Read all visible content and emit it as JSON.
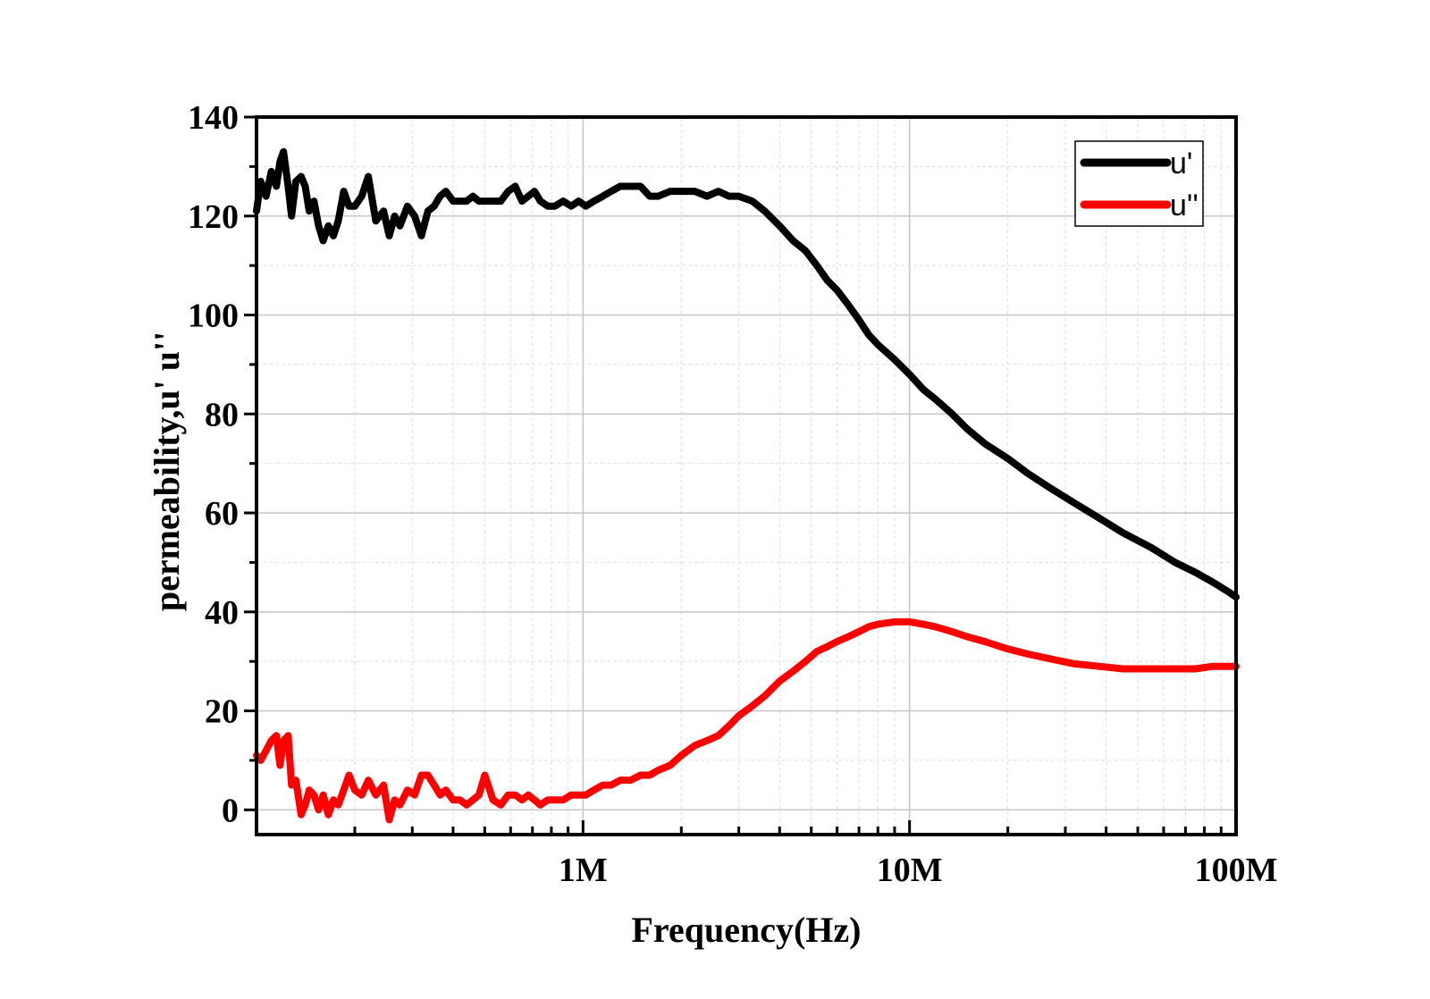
{
  "chart_data": {
    "type": "line",
    "title": "",
    "xlabel": "Frequency(Hz)",
    "ylabel": "permeability,u'  u''",
    "xscale": "log",
    "xlim": [
      100000,
      100000000
    ],
    "ylim": [
      -5,
      140
    ],
    "grid": true,
    "legend_position": "top-right",
    "x_tick_labels": [
      {
        "value": 1000000,
        "label": "1M"
      },
      {
        "value": 10000000,
        "label": "10M"
      },
      {
        "value": 100000000,
        "label": "100M"
      }
    ],
    "y_tick_labels": [
      {
        "value": 0,
        "label": "0"
      },
      {
        "value": 20,
        "label": "20"
      },
      {
        "value": 40,
        "label": "40"
      },
      {
        "value": 60,
        "label": "60"
      },
      {
        "value": 80,
        "label": "80"
      },
      {
        "value": 100,
        "label": "100"
      },
      {
        "value": 120,
        "label": "120"
      },
      {
        "value": 140,
        "label": "140"
      }
    ],
    "series": [
      {
        "name": "u'",
        "color": "#000000",
        "x": [
          100000,
          103000,
          107000,
          111000,
          115000,
          118000,
          121000,
          125000,
          128000,
          132000,
          137000,
          141000,
          145000,
          150000,
          155000,
          160000,
          166000,
          172000,
          178000,
          185000,
          192000,
          200000,
          210000,
          220000,
          232000,
          245000,
          255000,
          265000,
          275000,
          290000,
          305000,
          320000,
          335000,
          350000,
          365000,
          380000,
          400000,
          420000,
          440000,
          460000,
          480000,
          500000,
          530000,
          560000,
          590000,
          620000,
          650000,
          680000,
          710000,
          740000,
          780000,
          820000,
          870000,
          920000,
          970000,
          1020000,
          1080000,
          1150000,
          1220000,
          1300000,
          1400000,
          1500000,
          1600000,
          1700000,
          1850000,
          2000000,
          2200000,
          2400000,
          2600000,
          2800000,
          3000000,
          3300000,
          3600000,
          4000000,
          4400000,
          4800000,
          5200000,
          5600000,
          6000000,
          6500000,
          7000000,
          7500000,
          8000000,
          9000000,
          10000000,
          11000000,
          12000000,
          13500000,
          15000000,
          17000000,
          20000000,
          23000000,
          27000000,
          32000000,
          38000000,
          45000000,
          55000000,
          65000000,
          75000000,
          85000000,
          95000000,
          100000000
        ],
        "y": [
          121,
          127,
          124,
          129,
          126,
          131,
          133,
          126,
          120,
          127,
          128,
          126,
          121,
          123,
          118,
          115,
          118,
          116,
          119,
          125,
          122,
          122,
          124,
          128,
          119,
          121,
          116,
          120,
          118,
          122,
          120,
          116,
          121,
          122,
          124,
          125,
          123,
          123,
          123,
          124,
          123,
          123,
          123,
          123,
          125,
          126,
          123,
          124,
          125,
          123,
          122,
          122,
          123,
          122,
          123,
          122,
          123,
          124,
          125,
          126,
          126,
          126,
          124,
          124,
          125,
          125,
          125,
          124,
          125,
          124,
          124,
          123,
          121,
          118,
          115,
          113,
          110,
          107,
          105,
          102,
          99,
          96,
          94,
          91,
          88,
          85,
          83,
          80,
          77,
          74,
          71,
          68,
          65,
          62,
          59,
          56,
          53,
          50,
          48,
          46,
          44,
          43
        ]
      },
      {
        "name": "u''",
        "color": "#ff0000",
        "x": [
          100000,
          103000,
          107000,
          111000,
          115000,
          118000,
          121000,
          125000,
          128000,
          132000,
          137000,
          141000,
          145000,
          150000,
          155000,
          160000,
          166000,
          172000,
          178000,
          185000,
          192000,
          200000,
          210000,
          220000,
          232000,
          245000,
          255000,
          265000,
          275000,
          290000,
          305000,
          320000,
          335000,
          350000,
          365000,
          380000,
          400000,
          420000,
          440000,
          460000,
          480000,
          500000,
          530000,
          560000,
          590000,
          620000,
          650000,
          680000,
          710000,
          740000,
          780000,
          820000,
          870000,
          920000,
          970000,
          1020000,
          1080000,
          1150000,
          1220000,
          1300000,
          1400000,
          1500000,
          1600000,
          1700000,
          1850000,
          2000000,
          2200000,
          2400000,
          2600000,
          2800000,
          3000000,
          3300000,
          3600000,
          4000000,
          4400000,
          4800000,
          5200000,
          5600000,
          6000000,
          6500000,
          7000000,
          7500000,
          8000000,
          9000000,
          10000000,
          11000000,
          12000000,
          13500000,
          15000000,
          17000000,
          20000000,
          23000000,
          27000000,
          32000000,
          38000000,
          45000000,
          55000000,
          65000000,
          75000000,
          85000000,
          95000000,
          100000000
        ],
        "y": [
          11,
          10,
          12,
          14,
          15,
          9,
          14,
          15,
          5,
          6,
          -1,
          1,
          4,
          3,
          0,
          3,
          -1,
          2,
          1,
          4,
          7,
          4,
          3,
          6,
          3,
          5,
          -2,
          2,
          1,
          4,
          3,
          7,
          7,
          5,
          3,
          4,
          2,
          2,
          1,
          2,
          3,
          7,
          2,
          1,
          3,
          3,
          2,
          3,
          2,
          1,
          2,
          2,
          2,
          3,
          3,
          3,
          4,
          5,
          5,
          6,
          6,
          7,
          7,
          8,
          9,
          11,
          13,
          14,
          15,
          17,
          19,
          21,
          23,
          26,
          28,
          30,
          32,
          33,
          34,
          35,
          36,
          37,
          37.5,
          38,
          38,
          37.5,
          37,
          36,
          35,
          34,
          32.5,
          31.5,
          30.5,
          29.5,
          29,
          28.5,
          28.5,
          28.5,
          28.5,
          29,
          29,
          29
        ]
      }
    ]
  }
}
